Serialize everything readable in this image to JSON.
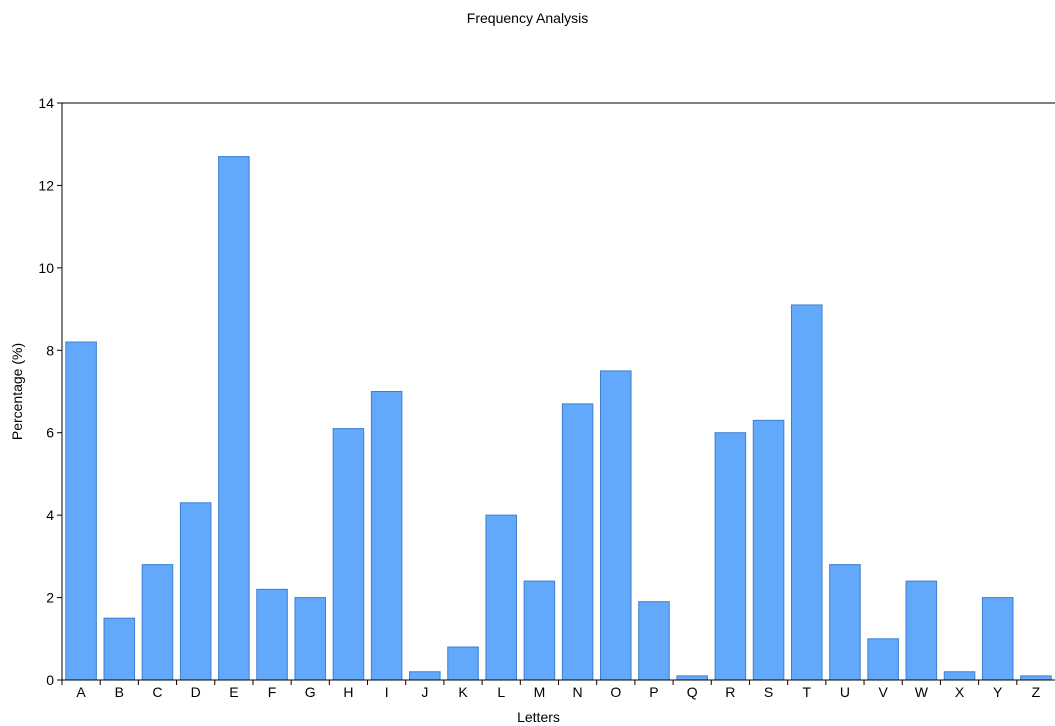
{
  "chart_data": {
    "type": "bar",
    "title": "Frequency Analysis",
    "xlabel": "Letters",
    "ylabel": "Percentage (%)",
    "ylim": [
      0,
      14
    ],
    "yticks": [
      "0",
      "2",
      "4",
      "6",
      "8",
      "10",
      "12",
      "14"
    ],
    "categories": [
      "A",
      "B",
      "C",
      "D",
      "E",
      "F",
      "G",
      "H",
      "I",
      "J",
      "K",
      "L",
      "M",
      "N",
      "O",
      "P",
      "Q",
      "R",
      "S",
      "T",
      "U",
      "V",
      "W",
      "X",
      "Y",
      "Z"
    ],
    "values": [
      8.2,
      1.5,
      2.8,
      4.3,
      12.7,
      2.2,
      2.0,
      6.1,
      7.0,
      0.2,
      0.8,
      4.0,
      2.4,
      6.7,
      7.5,
      1.9,
      0.1,
      6.0,
      6.3,
      9.1,
      2.8,
      1.0,
      2.4,
      0.2,
      2.0,
      0.1
    ],
    "bar_color": "#62a8fb",
    "grid": false,
    "legend": "none"
  }
}
